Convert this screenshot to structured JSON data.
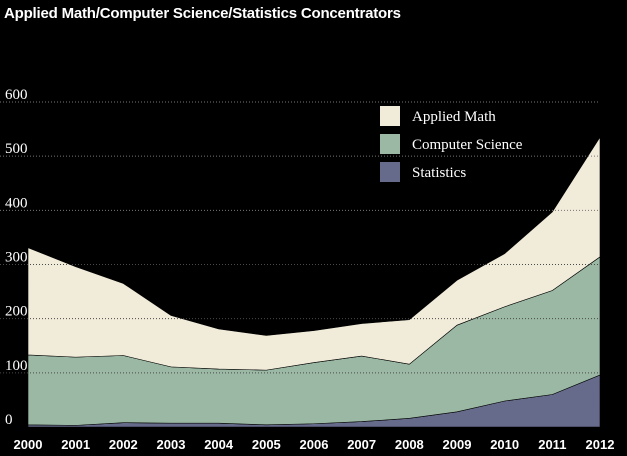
{
  "chart_data": {
    "type": "area",
    "title": "Applied Math/Computer Science/Statistics Concentrators",
    "xlabel": "",
    "ylabel": "",
    "stacked": true,
    "ylim": [
      0,
      600
    ],
    "yticks": [
      0,
      100,
      200,
      300,
      400,
      500,
      600
    ],
    "x": [
      "2000",
      "2001",
      "2002",
      "2003",
      "2004",
      "2005",
      "2006",
      "2007",
      "2008",
      "2009",
      "2010",
      "2011",
      "2012"
    ],
    "series": [
      {
        "name": "Statistics",
        "color": "#676b8b",
        "values": [
          4,
          3,
          8,
          7,
          7,
          4,
          6,
          10,
          16,
          28,
          48,
          60,
          96
        ]
      },
      {
        "name": "Computer Science",
        "color": "#9ab8a4",
        "values": [
          129,
          126,
          124,
          104,
          100,
          101,
          113,
          121,
          100,
          160,
          174,
          192,
          218
        ]
      },
      {
        "name": "Applied Math",
        "color": "#f1ebd9",
        "values": [
          198,
          167,
          133,
          95,
          74,
          64,
          59,
          60,
          82,
          83,
          98,
          145,
          221
        ]
      }
    ],
    "legend_order": [
      "Applied Math",
      "Computer Science",
      "Statistics"
    ],
    "legend_position": "top-right",
    "grid": "horizontal-dotted"
  }
}
